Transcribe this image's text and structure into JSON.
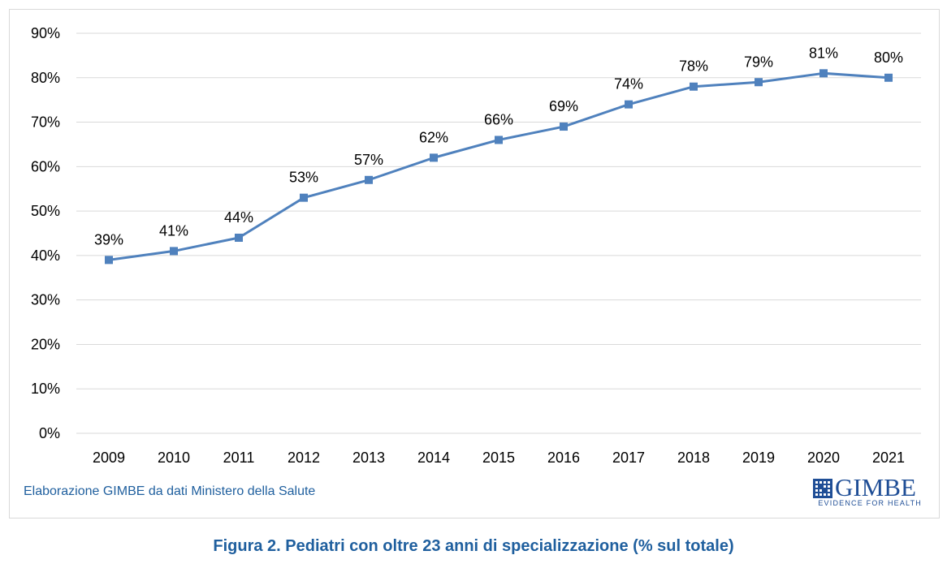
{
  "chart_data": {
    "type": "line",
    "categories": [
      "2009",
      "2010",
      "2011",
      "2012",
      "2013",
      "2014",
      "2015",
      "2016",
      "2017",
      "2018",
      "2019",
      "2020",
      "2021"
    ],
    "series": [
      {
        "values": [
          39,
          41,
          44,
          53,
          57,
          62,
          66,
          69,
          74,
          78,
          79,
          81,
          80
        ],
        "data_labels": [
          "39%",
          "41%",
          "44%",
          "53%",
          "57%",
          "62%",
          "66%",
          "69%",
          "74%",
          "78%",
          "79%",
          "81%",
          "80%"
        ],
        "color": "#4f81bd",
        "marker": "square"
      }
    ],
    "y_ticks": [
      "0%",
      "10%",
      "20%",
      "30%",
      "40%",
      "50%",
      "60%",
      "70%",
      "80%",
      "90%"
    ],
    "ylim": [
      0,
      90
    ],
    "grid": true,
    "gridline_color": "#d9d9d9"
  },
  "source_note": "Elaborazione GIMBE da dati Ministero della Salute",
  "logo": {
    "name": "GIMBE",
    "tagline": "EVIDENCE FOR HEALTH",
    "color": "#1f4e96"
  },
  "caption": "Figura 2. Pediatri con oltre 23 anni di specializzazione (% sul totale)",
  "colors": {
    "caption": "#1f5f9e",
    "source_note": "#1f5f9e"
  }
}
